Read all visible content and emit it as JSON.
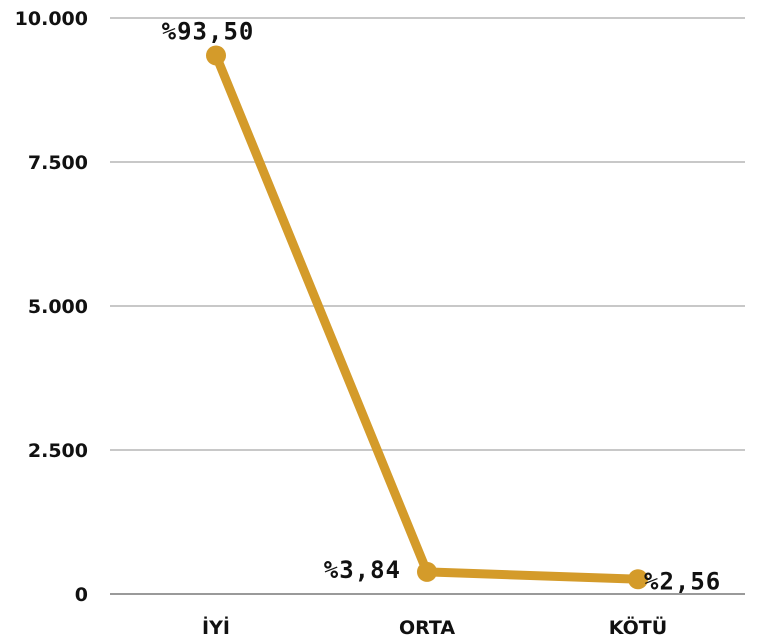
{
  "chart_data": {
    "type": "line",
    "categories": [
      "İYİ",
      "ORTA",
      "KÖTÜ"
    ],
    "series": [
      {
        "values": [
          9350,
          384,
          256
        ],
        "labels": [
          "%93,50",
          "%3,84",
          "%2,56"
        ]
      }
    ],
    "ylim": [
      0,
      10000
    ],
    "yticks": [
      0,
      2500,
      5000,
      7500,
      10000
    ],
    "ytick_labels": [
      "0",
      "2.500",
      "5.000",
      "7.500",
      "10.000"
    ],
    "grid": true,
    "legend": "none",
    "colors": {
      "line": "#D49B2A",
      "grid": "#C8C8C8",
      "axis": "#9A9A9A",
      "text": "#111111"
    }
  }
}
